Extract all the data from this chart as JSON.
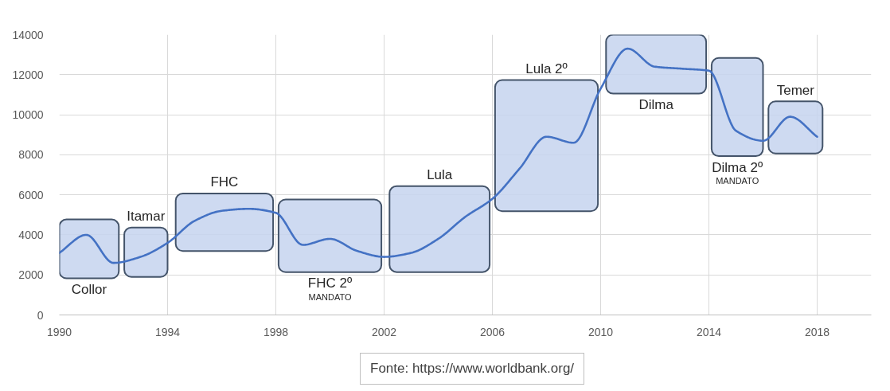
{
  "chart_data": {
    "type": "line",
    "x": [
      1990,
      1991,
      1992,
      1993,
      1994,
      1995,
      1996,
      1997,
      1998,
      1999,
      2000,
      2001,
      2002,
      2003,
      2004,
      2005,
      2006,
      2007,
      2008,
      2009,
      2010,
      2011,
      2012,
      2013,
      2014,
      2015,
      2016,
      2017,
      2018
    ],
    "series": [
      {
        "color": "#4472c4",
        "values": [
          3100,
          4000,
          2600,
          2900,
          3600,
          4700,
          5200,
          5300,
          5100,
          3500,
          3800,
          3200,
          2900,
          3100,
          3800,
          4900,
          5800,
          7300,
          8900,
          8600,
          11300,
          13300,
          12400,
          12300,
          12200,
          9200,
          8700,
          9900,
          8900
        ]
      }
    ],
    "xlim": [
      1990,
      2020
    ],
    "ylim": [
      0,
      14000
    ],
    "xticks": [
      1990,
      1994,
      1998,
      2002,
      2006,
      2010,
      2014,
      2018
    ],
    "yticks": [
      0,
      2000,
      4000,
      6000,
      8000,
      10000,
      12000,
      14000
    ],
    "grid": true,
    "bands": [
      {
        "axis": "x",
        "from": 1990.0,
        "to": 1992.2,
        "label": "Collor",
        "color": "#c6d4ee"
      },
      {
        "axis": "x",
        "from": 1992.4,
        "to": 1994.0,
        "label": "Itamar",
        "color": "#c6d4ee"
      },
      {
        "axis": "x",
        "from": 1994.3,
        "to": 1997.9,
        "label": "FHC",
        "color": "#c6d4ee"
      },
      {
        "axis": "x",
        "from": 1998.1,
        "to": 2001.9,
        "label": "FHC 2º\nMANDATO",
        "color": "#c6d4ee"
      },
      {
        "axis": "x",
        "from": 2002.2,
        "to": 2005.9,
        "label": "Lula",
        "color": "#c6d4ee"
      },
      {
        "axis": "x",
        "from": 2006.1,
        "to": 2009.9,
        "label": "Lula 2º",
        "color": "#c6d4ee"
      },
      {
        "axis": "x",
        "from": 2010.2,
        "to": 2013.9,
        "label": "Dilma",
        "color": "#c6d4ee"
      },
      {
        "axis": "x",
        "from": 2014.1,
        "to": 2016.0,
        "label": "Dilma 2º\nMANDATO",
        "color": "#c6d4ee"
      },
      {
        "axis": "x",
        "from": 2016.2,
        "to": 2018.2,
        "label": "Temer",
        "color": "#c6d4ee"
      }
    ],
    "annotations": [
      "Fonte: https://www.worldbank.org/"
    ]
  }
}
